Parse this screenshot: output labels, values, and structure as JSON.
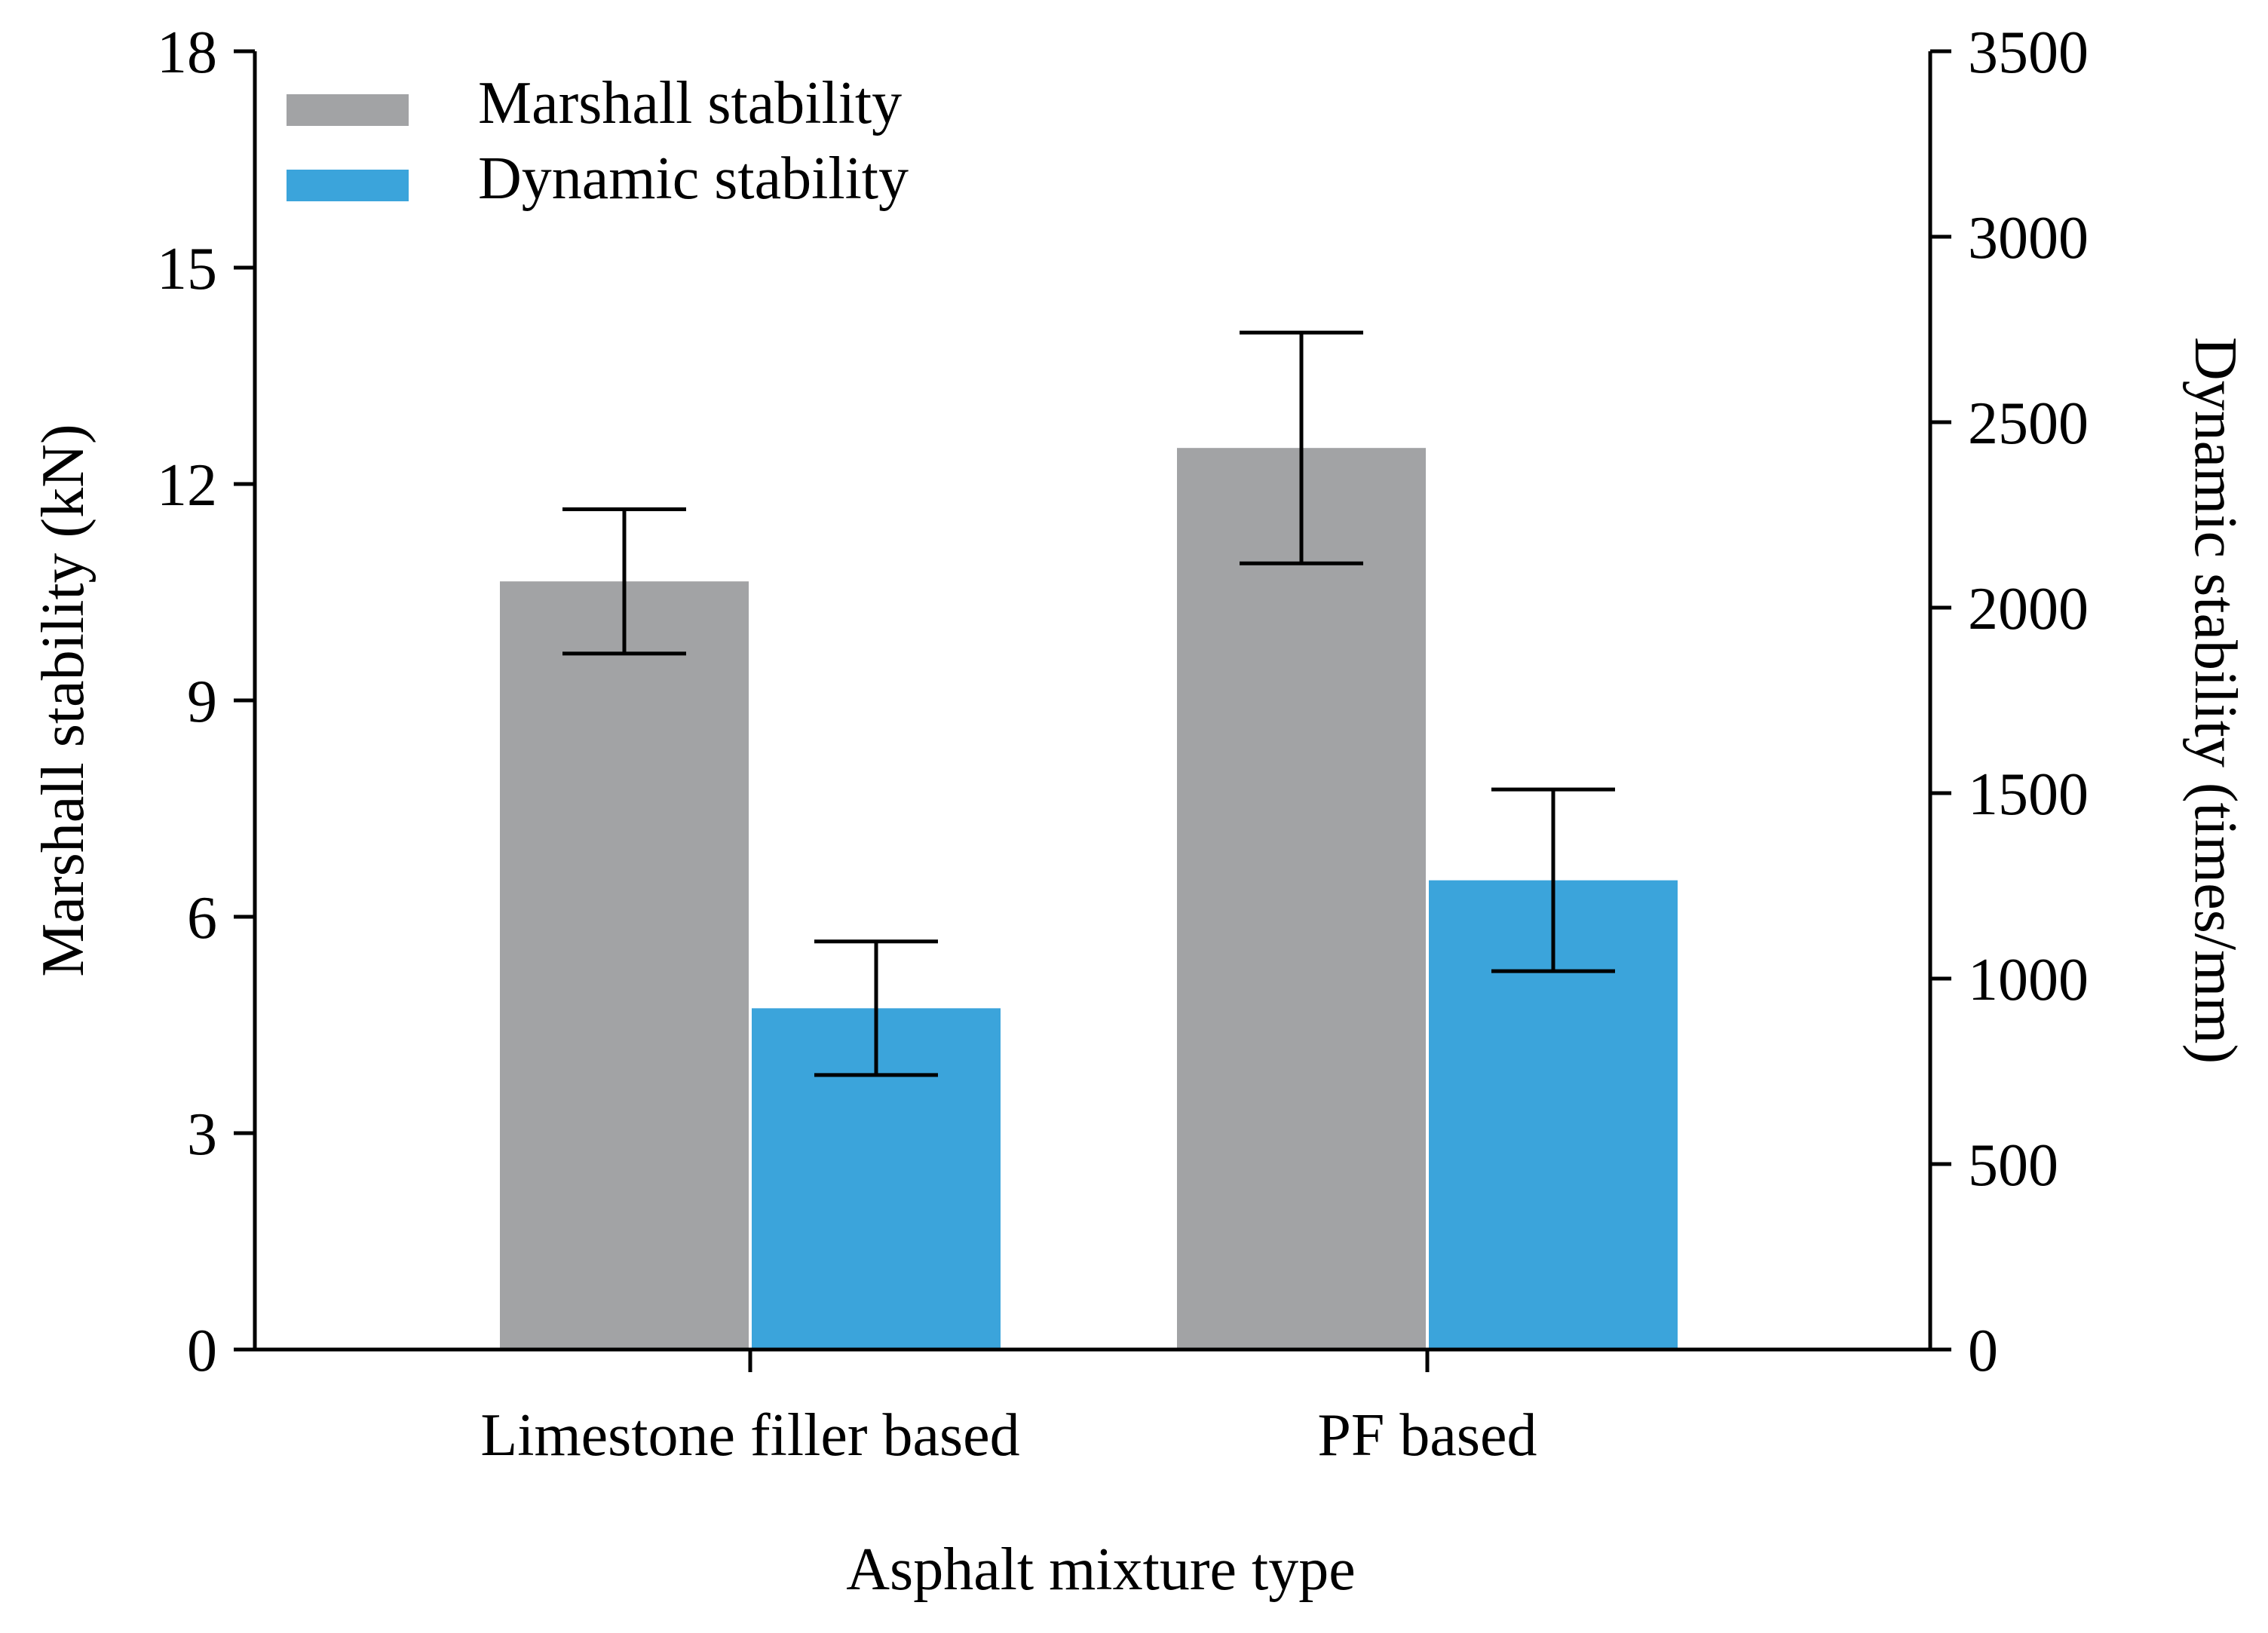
{
  "chart_data": {
    "type": "bar",
    "xlabel": "Asphalt mixture type",
    "categories": [
      "Limestone filler based",
      "PF based"
    ],
    "series": [
      {
        "name": "Marshall stability",
        "axis": "left",
        "values": [
          10.65,
          12.5
        ],
        "error_low": [
          9.65,
          10.9
        ],
        "error_high": [
          11.65,
          14.1
        ],
        "color": "#a2a3a5"
      },
      {
        "name": "Dynamic stability",
        "axis": "right",
        "values": [
          920,
          1265
        ],
        "error_low": [
          740,
          1020
        ],
        "error_high": [
          1100,
          1510
        ],
        "color": "#3ba4db"
      }
    ],
    "left_axis": {
      "label": "Marshall stability (kN)",
      "range": [
        0,
        18
      ],
      "ticks": [
        "0",
        "3",
        "6",
        "9",
        "12",
        "15",
        "18"
      ]
    },
    "right_axis": {
      "label": "Dynamic stability (times/mm)",
      "range": [
        0,
        3500
      ],
      "ticks": [
        "0",
        "500",
        "1000",
        "1500",
        "2000",
        "2500",
        "3000",
        "3500"
      ]
    },
    "legend": {
      "position": "top-left"
    },
    "grid": false
  }
}
